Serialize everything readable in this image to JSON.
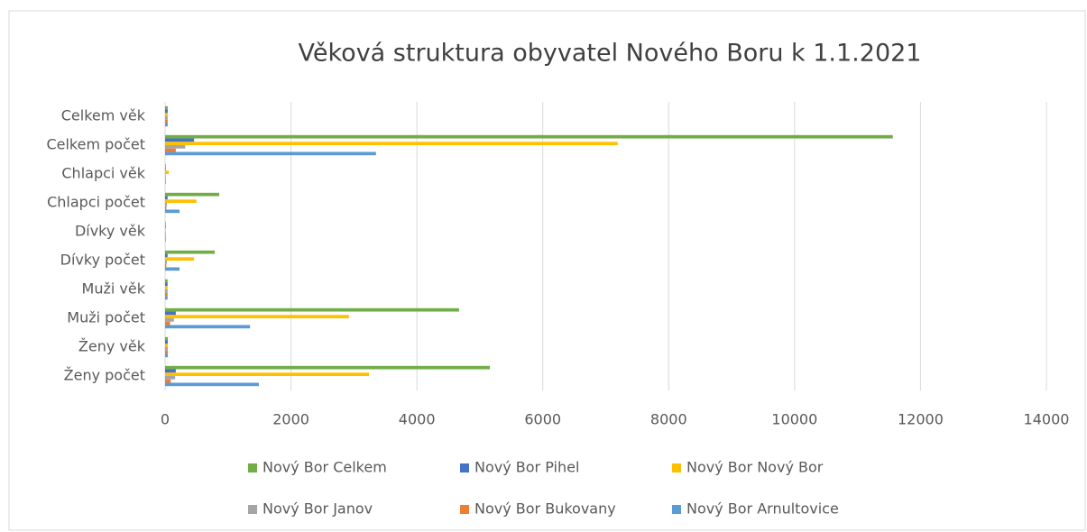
{
  "chart_data": {
    "type": "bar",
    "orientation": "horizontal",
    "title": "Věková struktura obyvatel Nového Boru k 1.1.2021",
    "categories": [
      "Celkem věk",
      "Celkem počet",
      "Chlapci věk",
      "Chlapci počet",
      "Dívky věk",
      "Dívky počet",
      "Muži věk",
      "Muži počet",
      "Ženy věk",
      "Ženy počet"
    ],
    "series": [
      {
        "name": "Nový Bor Celkem",
        "color": "#70ad47",
        "values": [
          42,
          11560,
          10,
          860,
          10,
          790,
          40,
          4670,
          44,
          5160
        ]
      },
      {
        "name": "Nový Bor Pihel",
        "color": "#4472c4",
        "values": [
          42,
          460,
          10,
          40,
          10,
          40,
          40,
          170,
          44,
          170
        ]
      },
      {
        "name": "Nový Bor Nový Bor",
        "color": "#ffc000",
        "values": [
          42,
          7190,
          60,
          500,
          10,
          460,
          40,
          2920,
          44,
          3240
        ]
      },
      {
        "name": "Nový Bor Janov",
        "color": "#a5a5a5",
        "values": [
          42,
          320,
          10,
          30,
          10,
          30,
          40,
          140,
          44,
          160
        ]
      },
      {
        "name": "Nový Bor Bukovany",
        "color": "#ed7d31",
        "values": [
          42,
          170,
          10,
          20,
          10,
          20,
          40,
          80,
          44,
          90
        ]
      },
      {
        "name": "Nový Bor Arnultovice",
        "color": "#5b9bd5",
        "values": [
          42,
          3350,
          10,
          230,
          10,
          230,
          40,
          1350,
          44,
          1490
        ]
      }
    ],
    "xlim": [
      0,
      14000
    ],
    "xticks": [
      0,
      2000,
      4000,
      6000,
      8000,
      10000,
      12000,
      14000
    ],
    "grid": true
  }
}
